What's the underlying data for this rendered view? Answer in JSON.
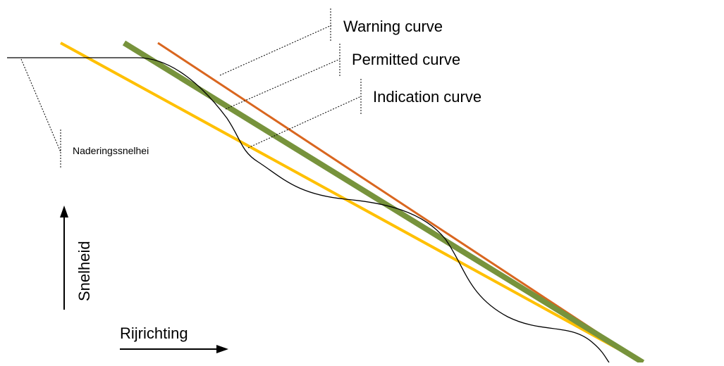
{
  "labels": {
    "warning": "Warning curve",
    "permitted": "Permitted curve",
    "indication": "Indication curve",
    "approach_speed": "Naderingssnelhei",
    "y_axis": "Snelheid",
    "x_axis": "Rijrichting"
  },
  "colors": {
    "warning_line": "#D9661F",
    "permitted_line": "#77933C",
    "indication_line": "#FFC000",
    "speed_profile": "#000000",
    "leader": "#000000"
  }
}
